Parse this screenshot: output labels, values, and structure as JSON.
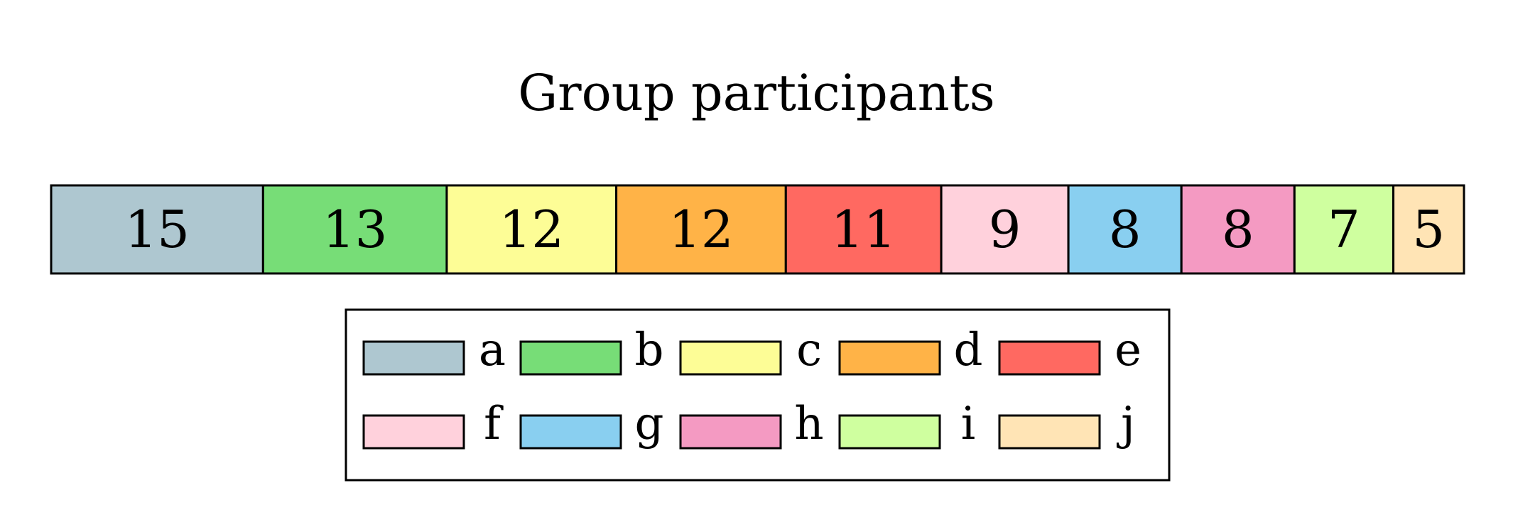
{
  "chart_data": {
    "type": "bar",
    "orientation": "horizontal-stacked",
    "title": "Group participants",
    "categories": [
      "a",
      "b",
      "c",
      "d",
      "e",
      "f",
      "g",
      "h",
      "i",
      "j"
    ],
    "values": [
      15,
      13,
      12,
      12,
      11,
      9,
      8,
      8,
      7,
      5
    ],
    "colors": [
      "#aec7d0",
      "#77dd77",
      "#fdfd96",
      "#ffb347",
      "#ff6961",
      "#ffd1dc",
      "#89cff0",
      "#f49ac2",
      "#cfff9f",
      "#ffe4b5"
    ],
    "legend": {
      "position": "bottom-center",
      "columns": 5
    },
    "grid": false,
    "xlabel": "",
    "ylabel": ""
  }
}
